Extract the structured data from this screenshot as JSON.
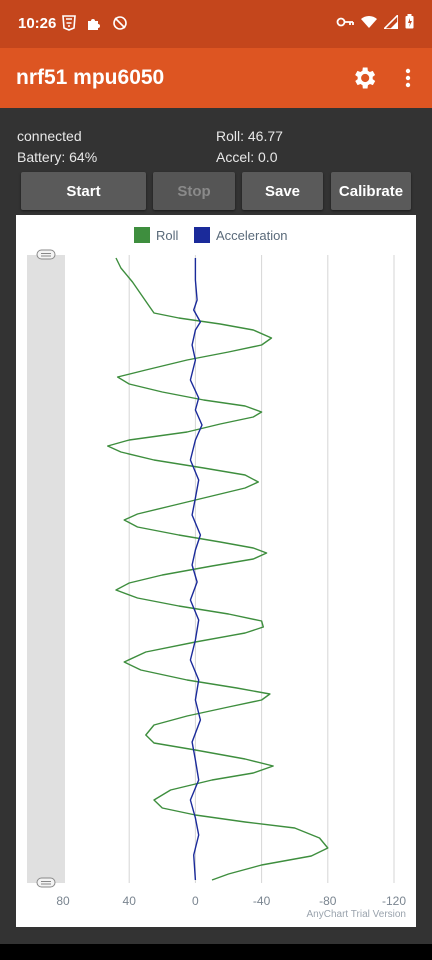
{
  "status": {
    "time": "10:26"
  },
  "app": {
    "title": "nrf51 mpu6050"
  },
  "info": {
    "connection": "connected",
    "battery": "Battery: 64%",
    "roll": "Roll: 46.77",
    "accel": "Accel: 0.0"
  },
  "buttons": {
    "start": "Start",
    "stop": "Stop",
    "save": "Save",
    "calibrate": "Calibrate"
  },
  "chart": {
    "watermark": "AnyChart Trial Version"
  },
  "colors": {
    "statusbar": "#c4461c",
    "appbar": "#dd5522",
    "roll": "#3e8e3e",
    "accel": "#1a2a9a"
  },
  "chart_data": {
    "type": "line",
    "orientation": "vertical",
    "x_axis": {
      "ticks": [
        "80",
        "40",
        "0",
        "-40",
        "-80",
        "-120"
      ],
      "range": [
        80,
        -120
      ]
    },
    "series": [
      {
        "name": "Roll",
        "color": "#3e8e3e",
        "points": [
          [
            48,
            258
          ],
          [
            45,
            268
          ],
          [
            38,
            282
          ],
          [
            33,
            294
          ],
          [
            28,
            306
          ],
          [
            25,
            313
          ],
          [
            10,
            318
          ],
          [
            -15,
            324
          ],
          [
            -35,
            330
          ],
          [
            -46,
            338
          ],
          [
            -40,
            345
          ],
          [
            -20,
            352
          ],
          [
            5,
            360
          ],
          [
            30,
            370
          ],
          [
            47,
            377
          ],
          [
            40,
            384
          ],
          [
            20,
            392
          ],
          [
            -5,
            400
          ],
          [
            -30,
            406
          ],
          [
            -40,
            412
          ],
          [
            -35,
            417
          ],
          [
            -15,
            424
          ],
          [
            5,
            432
          ],
          [
            40,
            440
          ],
          [
            53,
            446
          ],
          [
            45,
            452
          ],
          [
            25,
            460
          ],
          [
            -5,
            468
          ],
          [
            -30,
            475
          ],
          [
            -38,
            482
          ],
          [
            -30,
            488
          ],
          [
            -10,
            496
          ],
          [
            15,
            506
          ],
          [
            35,
            514
          ],
          [
            43,
            520
          ],
          [
            35,
            527
          ],
          [
            10,
            535
          ],
          [
            -15,
            542
          ],
          [
            -35,
            548
          ],
          [
            -43,
            553
          ],
          [
            -35,
            559
          ],
          [
            -10,
            566
          ],
          [
            20,
            575
          ],
          [
            40,
            583
          ],
          [
            48,
            590
          ],
          [
            35,
            598
          ],
          [
            10,
            606
          ],
          [
            -20,
            614
          ],
          [
            -40,
            621
          ],
          [
            -41,
            627
          ],
          [
            -30,
            633
          ],
          [
            0,
            642
          ],
          [
            30,
            652
          ],
          [
            43,
            662
          ],
          [
            33,
            670
          ],
          [
            5,
            680
          ],
          [
            -25,
            688
          ],
          [
            -45,
            694
          ],
          [
            -40,
            700
          ],
          [
            -20,
            707
          ],
          [
            5,
            716
          ],
          [
            25,
            725
          ],
          [
            30,
            735
          ],
          [
            25,
            743
          ],
          [
            0,
            750
          ],
          [
            -30,
            759
          ],
          [
            -47,
            766
          ],
          [
            -35,
            773
          ],
          [
            -10,
            780
          ],
          [
            15,
            790
          ],
          [
            25,
            800
          ],
          [
            20,
            808
          ],
          [
            0,
            815
          ],
          [
            -30,
            822
          ],
          [
            -60,
            828
          ],
          [
            -75,
            838
          ],
          [
            -80,
            848
          ],
          [
            -70,
            856
          ],
          [
            -40,
            865
          ],
          [
            -20,
            874
          ],
          [
            -10,
            880
          ]
        ]
      },
      {
        "name": "Acceleration",
        "color": "#1a2a9a",
        "points": [
          [
            0,
            258
          ],
          [
            0,
            280
          ],
          [
            -1,
            300
          ],
          [
            1,
            310
          ],
          [
            -3,
            322
          ],
          [
            0,
            330
          ],
          [
            2,
            345
          ],
          [
            0,
            360
          ],
          [
            3,
            380
          ],
          [
            -2,
            398
          ],
          [
            0,
            410
          ],
          [
            -4,
            425
          ],
          [
            0,
            440
          ],
          [
            3,
            460
          ],
          [
            -2,
            480
          ],
          [
            0,
            498
          ],
          [
            2,
            515
          ],
          [
            -3,
            535
          ],
          [
            0,
            550
          ],
          [
            2,
            565
          ],
          [
            -1,
            582
          ],
          [
            3,
            600
          ],
          [
            -2,
            620
          ],
          [
            0,
            640
          ],
          [
            3,
            660
          ],
          [
            -2,
            680
          ],
          [
            0,
            700
          ],
          [
            -3,
            720
          ],
          [
            2,
            742
          ],
          [
            0,
            760
          ],
          [
            -2,
            780
          ],
          [
            3,
            800
          ],
          [
            0,
            818
          ],
          [
            -2,
            835
          ],
          [
            1,
            855
          ],
          [
            0,
            880
          ]
        ]
      }
    ],
    "grid": true,
    "legend": "top"
  }
}
